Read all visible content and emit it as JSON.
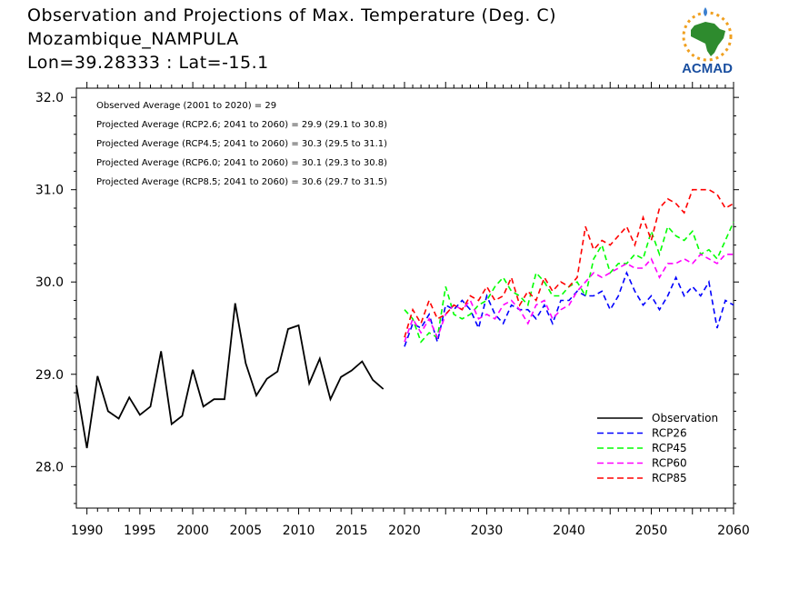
{
  "header": {
    "title_lines": [
      "Observation and Projections of Max. Temperature (Deg. C)",
      "Mozambique_NAMPULA",
      "Lon=39.28333 : Lat=-15.1"
    ]
  },
  "logo": {
    "text": "ACMAD",
    "icon": "africa-sun-logo-icon",
    "colors": {
      "africa": "#2e8b2e",
      "sun": "#f0a020",
      "text": "#1a4fa0",
      "drop": "#3a7fd0"
    }
  },
  "chart_data": {
    "type": "line",
    "title": "",
    "xlabel": "",
    "ylabel": "",
    "xlim": [
      1989,
      2060
    ],
    "ylim": [
      27.55,
      32.1
    ],
    "x_break": {
      "left": [
        1989,
        2020
      ],
      "right": [
        2020,
        2060
      ]
    },
    "x_ticks_left": [
      "1990",
      "1995",
      "2000",
      "2005",
      "2010",
      "2015",
      "2020"
    ],
    "x_ticks_left_values": [
      1990,
      1995,
      2000,
      2005,
      2010,
      2015,
      2020
    ],
    "x_ticks_right": [
      "2030",
      "2040",
      "2050",
      "2060"
    ],
    "x_ticks_right_values": [
      2030,
      2040,
      2050,
      2060
    ],
    "y_ticks": [
      "28.0",
      "29.0",
      "30.0",
      "31.0",
      "32.0"
    ],
    "y_ticks_values": [
      28.0,
      29.0,
      30.0,
      31.0,
      32.0
    ],
    "annotations": [
      "Observed Average (2001 to 2020) = 29",
      "Projected Average (RCP2.6; 2041 to 2060) = 29.9 (29.1 to 30.8)",
      "Projected Average (RCP4.5; 2041 to 2060) = 30.3 (29.5 to 31.1)",
      "Projected Average (RCP6.0; 2041 to 2060) = 30.1 (29.3 to 30.8)",
      "Projected Average (RCP8.5; 2041 to 2060) = 30.6 (29.7 to 31.5)"
    ],
    "legend_position": "bottom-right",
    "series": [
      {
        "name": "Observation",
        "color": "#000000",
        "dash": false,
        "x": [
          1989,
          1990,
          1991,
          1992,
          1993,
          1994,
          1995,
          1996,
          1997,
          1998,
          1999,
          2000,
          2001,
          2002,
          2003,
          2004,
          2005,
          2006,
          2007,
          2008,
          2009,
          2010,
          2011,
          2012,
          2013,
          2014,
          2015,
          2016,
          2017,
          2018,
          2019
        ],
        "y": [
          28.88,
          28.2,
          28.98,
          28.6,
          28.52,
          28.75,
          28.56,
          28.65,
          29.25,
          28.46,
          28.55,
          29.05,
          28.65,
          28.73,
          28.73,
          29.77,
          29.12,
          28.77,
          28.95,
          29.03,
          29.49,
          29.53,
          28.9,
          29.17,
          28.73,
          28.97,
          29.04,
          29.14,
          28.94,
          28.84,
          null
        ]
      },
      {
        "name": "RCP26",
        "color": "#0000ff",
        "dash": true,
        "x": [
          2020,
          2021,
          2022,
          2023,
          2024,
          2025,
          2026,
          2027,
          2028,
          2029,
          2030,
          2031,
          2032,
          2033,
          2034,
          2035,
          2036,
          2037,
          2038,
          2039,
          2040,
          2041,
          2042,
          2043,
          2044,
          2045,
          2046,
          2047,
          2048,
          2049,
          2050,
          2051,
          2052,
          2053,
          2054,
          2055,
          2056,
          2057,
          2058,
          2059,
          2060
        ],
        "y": [
          29.3,
          29.55,
          29.5,
          29.65,
          29.35,
          29.75,
          29.7,
          29.8,
          29.7,
          29.5,
          29.85,
          29.65,
          29.55,
          29.75,
          29.7,
          29.7,
          29.6,
          29.75,
          29.55,
          29.8,
          29.8,
          29.9,
          29.85,
          29.85,
          29.9,
          29.7,
          29.85,
          30.1,
          29.9,
          29.75,
          29.85,
          29.7,
          29.85,
          30.05,
          29.85,
          29.95,
          29.85,
          30.0,
          29.5,
          29.8,
          29.75
        ]
      },
      {
        "name": "RCP45",
        "color": "#00ff00",
        "dash": true,
        "x": [
          2020,
          2021,
          2022,
          2023,
          2024,
          2025,
          2026,
          2027,
          2028,
          2029,
          2030,
          2031,
          2032,
          2033,
          2034,
          2035,
          2036,
          2037,
          2038,
          2039,
          2040,
          2041,
          2042,
          2043,
          2044,
          2045,
          2046,
          2047,
          2048,
          2049,
          2050,
          2051,
          2052,
          2053,
          2054,
          2055,
          2056,
          2057,
          2058,
          2059,
          2060
        ],
        "y": [
          29.7,
          29.6,
          29.35,
          29.45,
          29.4,
          29.95,
          29.65,
          29.6,
          29.65,
          29.75,
          29.8,
          29.95,
          30.05,
          29.9,
          29.85,
          29.75,
          30.1,
          30.0,
          29.85,
          29.85,
          29.95,
          30.0,
          29.85,
          30.25,
          30.4,
          30.1,
          30.2,
          30.2,
          30.3,
          30.25,
          30.55,
          30.3,
          30.6,
          30.5,
          30.45,
          30.55,
          30.3,
          30.35,
          30.25,
          30.45,
          30.65
        ]
      },
      {
        "name": "RCP60",
        "color": "#ff00ff",
        "dash": true,
        "x": [
          2020,
          2021,
          2022,
          2023,
          2024,
          2025,
          2026,
          2027,
          2028,
          2029,
          2030,
          2031,
          2032,
          2033,
          2034,
          2035,
          2036,
          2037,
          2038,
          2039,
          2040,
          2041,
          2042,
          2043,
          2044,
          2045,
          2046,
          2047,
          2048,
          2049,
          2050,
          2051,
          2052,
          2053,
          2054,
          2055,
          2056,
          2057,
          2058,
          2059,
          2060
        ],
        "y": [
          29.35,
          29.6,
          29.45,
          29.6,
          29.4,
          29.65,
          29.75,
          29.7,
          29.8,
          29.6,
          29.65,
          29.6,
          29.75,
          29.8,
          29.7,
          29.55,
          29.75,
          29.8,
          29.6,
          29.7,
          29.75,
          29.9,
          30.0,
          30.1,
          30.05,
          30.1,
          30.15,
          30.2,
          30.15,
          30.15,
          30.25,
          30.05,
          30.2,
          30.2,
          30.25,
          30.2,
          30.3,
          30.25,
          30.2,
          30.3,
          30.3
        ]
      },
      {
        "name": "RCP85",
        "color": "#ff0000",
        "dash": true,
        "x": [
          2020,
          2021,
          2022,
          2023,
          2024,
          2025,
          2026,
          2027,
          2028,
          2029,
          2030,
          2031,
          2032,
          2033,
          2034,
          2035,
          2036,
          2037,
          2038,
          2039,
          2040,
          2041,
          2042,
          2043,
          2044,
          2045,
          2046,
          2047,
          2048,
          2049,
          2050,
          2051,
          2052,
          2053,
          2054,
          2055,
          2056,
          2057,
          2058,
          2059,
          2060
        ],
        "y": [
          29.4,
          29.7,
          29.55,
          29.8,
          29.6,
          29.65,
          29.75,
          29.7,
          29.85,
          29.8,
          29.95,
          29.8,
          29.85,
          30.05,
          29.75,
          29.9,
          29.8,
          30.05,
          29.9,
          30.0,
          29.95,
          30.05,
          30.6,
          30.35,
          30.45,
          30.4,
          30.5,
          30.6,
          30.4,
          30.7,
          30.45,
          30.8,
          30.9,
          30.85,
          30.75,
          31.0,
          31.0,
          31.0,
          30.95,
          30.8,
          30.85
        ]
      }
    ]
  }
}
